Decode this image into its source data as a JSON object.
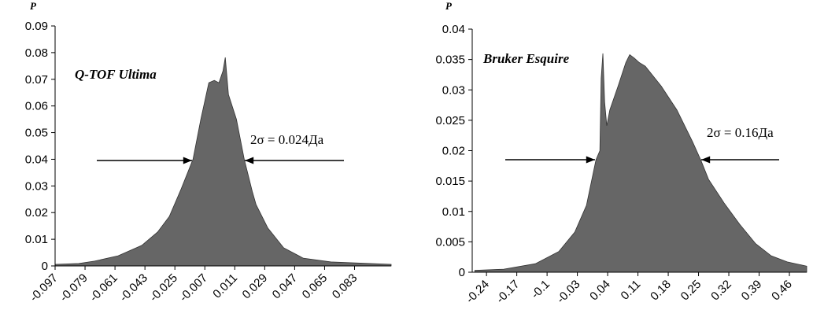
{
  "chart_data": [
    {
      "type": "area",
      "y_label": "P",
      "annotations": [
        "Q-TOF Ultima",
        "2σ = 0.024Да"
      ],
      "color": "#666666",
      "x": [
        -0.097,
        -0.0828,
        -0.0733,
        -0.0591,
        -0.0449,
        -0.0354,
        -0.0283,
        -0.0212,
        -0.0141,
        -0.0094,
        -0.0046,
        -0.0013,
        0.0015,
        0.0039,
        0.0053,
        0.0072,
        0.012,
        0.0167,
        0.0215,
        0.0238,
        0.0309,
        0.0404,
        0.0522,
        0.0688,
        0.105
      ],
      "values": [
        0.0006,
        0.0009,
        0.0018,
        0.0038,
        0.0077,
        0.0127,
        0.0186,
        0.0289,
        0.04,
        0.055,
        0.0687,
        0.0696,
        0.0687,
        0.0731,
        0.0782,
        0.0643,
        0.055,
        0.04,
        0.028,
        0.023,
        0.0142,
        0.0068,
        0.0029,
        0.0015,
        0.0006
      ],
      "xlim": [
        -0.097,
        0.105
      ],
      "ylim": [
        0,
        0.09
      ],
      "xticks": [
        -0.097,
        -0.079,
        -0.061,
        -0.043,
        -0.025,
        -0.007,
        0.011,
        0.029,
        0.047,
        0.065,
        0.083
      ],
      "yticks": [
        0,
        0.01,
        0.02,
        0.03,
        0.04,
        0.05,
        0.06,
        0.07,
        0.08,
        0.09
      ]
    },
    {
      "type": "area",
      "y_label": "P",
      "annotations": [
        "Bruker Esquire",
        "2σ = 0.16Да"
      ],
      "color": "#666666",
      "x": [
        -0.267,
        -0.2,
        -0.127,
        -0.073,
        -0.036,
        -0.009,
        0.013,
        0.022,
        0.025,
        0.029,
        0.033,
        0.038,
        0.045,
        0.064,
        0.082,
        0.091,
        0.102,
        0.113,
        0.127,
        0.164,
        0.2,
        0.236,
        0.255,
        0.273,
        0.309,
        0.345,
        0.382,
        0.418,
        0.455,
        0.5
      ],
      "values": [
        0.0003,
        0.0005,
        0.0014,
        0.0034,
        0.0066,
        0.011,
        0.0185,
        0.02,
        0.0319,
        0.036,
        0.028,
        0.0241,
        0.0267,
        0.0306,
        0.0345,
        0.0358,
        0.0352,
        0.0345,
        0.0339,
        0.0306,
        0.0267,
        0.0215,
        0.0185,
        0.0153,
        0.0114,
        0.0079,
        0.0047,
        0.0027,
        0.0017,
        0.001
      ],
      "xlim": [
        -0.273,
        0.5
      ],
      "ylim": [
        0,
        0.04
      ],
      "xticks": [
        -0.24,
        -0.17,
        -0.1,
        -0.03,
        0.04,
        0.11,
        0.18,
        0.25,
        0.32,
        0.39,
        0.46
      ],
      "yticks": [
        0,
        0.005,
        0.01,
        0.015,
        0.02,
        0.025,
        0.03,
        0.035,
        0.04
      ]
    }
  ]
}
